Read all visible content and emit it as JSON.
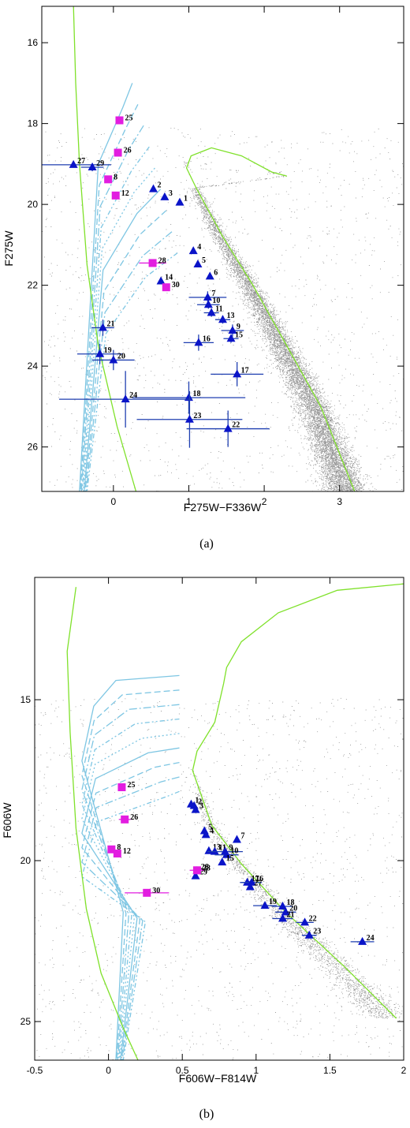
{
  "figure": {
    "captions": [
      "(a)",
      "(b)"
    ]
  },
  "colors": {
    "green": "#7fe12a",
    "cyan": "#7ec6e3",
    "gray": "#7a7a7a",
    "blue": "#0a14c8",
    "errbar_blue": "#1f3fb0",
    "magenta": "#e21de0"
  },
  "chart_data": [
    {
      "type": "scatter",
      "panel": "a",
      "caption": "(a)",
      "xlabel": "F275W−F336W",
      "ylabel": "F275W",
      "xlim": [
        -0.95,
        3.85
      ],
      "ylim": [
        27.1,
        15.1
      ],
      "xticks": [
        0,
        1,
        2,
        3
      ],
      "yticks": [
        16,
        18,
        20,
        22,
        24,
        26
      ],
      "background_cloud": "field stars (gray dots)",
      "isochrone_green": [
        [
          0.3,
          27.1
        ],
        [
          0.05,
          25.5
        ],
        [
          -0.2,
          23.5
        ],
        [
          -0.35,
          21.5
        ],
        [
          -0.45,
          19
        ],
        [
          -0.5,
          17
        ],
        [
          -0.53,
          15.1
        ]
      ],
      "isochrone_green_rgb": [
        [
          3.2,
          27.1
        ],
        [
          2.75,
          25
        ],
        [
          2.3,
          23.5
        ],
        [
          1.85,
          22
        ],
        [
          1.45,
          20.8
        ],
        [
          1.1,
          19.6
        ],
        [
          0.97,
          19.1
        ],
        [
          1.03,
          18.8
        ],
        [
          1.3,
          18.6
        ],
        [
          1.7,
          18.8
        ],
        [
          2.1,
          19.2
        ],
        [
          2.3,
          19.3
        ]
      ],
      "blue_stars": [
        {
          "label": "1",
          "x": 0.88,
          "y": 19.95,
          "xerr": 0.0,
          "yerr": 0.0
        },
        {
          "label": "2",
          "x": 0.53,
          "y": 19.62,
          "xerr": 0.0,
          "yerr": 0.0
        },
        {
          "label": "3",
          "x": 0.68,
          "y": 19.82,
          "xerr": 0.0,
          "yerr": 0.0
        },
        {
          "label": "4",
          "x": 1.06,
          "y": 21.15,
          "xerr": 0.0,
          "yerr": 0.0
        },
        {
          "label": "5",
          "x": 1.12,
          "y": 21.48,
          "xerr": 0.0,
          "yerr": 0.0
        },
        {
          "label": "6",
          "x": 1.28,
          "y": 21.78,
          "xerr": 0.0,
          "yerr": 0.0
        },
        {
          "label": "7",
          "x": 1.25,
          "y": 22.3,
          "xerr": 0.25,
          "yerr": 0.15
        },
        {
          "label": "10",
          "x": 1.26,
          "y": 22.48,
          "xerr": 0.15,
          "yerr": 0.1
        },
        {
          "label": "11",
          "x": 1.3,
          "y": 22.68,
          "xerr": 0.1,
          "yerr": 0.1
        },
        {
          "label": "13",
          "x": 1.45,
          "y": 22.85,
          "xerr": 0.1,
          "yerr": 0.1
        },
        {
          "label": "9",
          "x": 1.58,
          "y": 23.12,
          "xerr": 0.15,
          "yerr": 0.15
        },
        {
          "label": "15",
          "x": 1.56,
          "y": 23.32,
          "xerr": 0.1,
          "yerr": 0.1
        },
        {
          "label": "14",
          "x": 0.63,
          "y": 21.9,
          "xerr": 0.0,
          "yerr": 0.0
        },
        {
          "label": "16",
          "x": 1.13,
          "y": 23.42,
          "xerr": 0.2,
          "yerr": 0.2
        },
        {
          "label": "17",
          "x": 1.64,
          "y": 24.2,
          "xerr": 0.35,
          "yerr": 0.3
        },
        {
          "label": "18",
          "x": 1.0,
          "y": 24.78,
          "xerr": 0.75,
          "yerr": 0.4
        },
        {
          "label": "19",
          "x": -0.18,
          "y": 23.7,
          "xerr": 0.3,
          "yerr": 0.25
        },
        {
          "label": "20",
          "x": 0.0,
          "y": 23.85,
          "xerr": 0.28,
          "yerr": 0.25
        },
        {
          "label": "21",
          "x": -0.14,
          "y": 23.05,
          "xerr": 0.15,
          "yerr": 0.2
        },
        {
          "label": "22",
          "x": 1.52,
          "y": 25.55,
          "xerr": 0.55,
          "yerr": 0.45
        },
        {
          "label": "23",
          "x": 1.01,
          "y": 25.32,
          "xerr": 0.7,
          "yerr": 0.7
        },
        {
          "label": "24",
          "x": 0.16,
          "y": 24.82,
          "xerr": 0.88,
          "yerr": 0.7
        },
        {
          "label": "27",
          "x": -0.53,
          "y": 19.02,
          "xerr": 0.5,
          "yerr": 0.0
        },
        {
          "label": "29",
          "x": -0.28,
          "y": 19.08,
          "xerr": 0.15,
          "yerr": 0.1
        }
      ],
      "magenta_stars": [
        {
          "label": "25",
          "x": 0.08,
          "y": 17.92,
          "xerr": 0.0
        },
        {
          "label": "26",
          "x": 0.06,
          "y": 18.72,
          "xerr": 0.0
        },
        {
          "label": "8",
          "x": -0.07,
          "y": 19.38,
          "xerr": 0.0
        },
        {
          "label": "12",
          "x": 0.03,
          "y": 19.78,
          "xerr": 0.0
        },
        {
          "label": "28",
          "x": 0.52,
          "y": 21.45,
          "xerr": 0.18
        },
        {
          "label": "30",
          "x": 0.7,
          "y": 22.05,
          "xerr": 0.0
        }
      ]
    },
    {
      "type": "scatter",
      "panel": "b",
      "caption": "(b)",
      "xlabel": "F606W−F814W",
      "ylabel": "F606W",
      "xlim": [
        -0.5,
        2.0
      ],
      "ylim": [
        26.2,
        11.2
      ],
      "xticks": [
        -0.5,
        0,
        0.5,
        1,
        1.5,
        2
      ],
      "xtick_labels": [
        "-0.5",
        "0",
        "0.5",
        "1",
        "1.5",
        "2"
      ],
      "yticks": [
        15,
        20,
        25
      ],
      "background_cloud": "field stars (gray dots)",
      "isochrone_green": [
        [
          0.2,
          26.2
        ],
        [
          0.1,
          25.2
        ],
        [
          -0.05,
          23.5
        ],
        [
          -0.15,
          21.5
        ],
        [
          -0.22,
          19
        ],
        [
          -0.26,
          16
        ],
        [
          -0.28,
          13.5
        ],
        [
          -0.22,
          11.5
        ]
      ],
      "isochrone_green_rgb": [
        [
          1.95,
          24.9
        ],
        [
          1.6,
          23.3
        ],
        [
          1.2,
          21.6
        ],
        [
          0.9,
          20.1
        ],
        [
          0.7,
          18.9
        ],
        [
          0.57,
          17.2
        ],
        [
          0.6,
          16.6
        ],
        [
          0.72,
          15.7
        ],
        [
          0.78,
          14.5
        ],
        [
          0.8,
          14.0
        ],
        [
          0.9,
          13.2
        ],
        [
          1.15,
          12.3
        ],
        [
          1.55,
          11.6
        ],
        [
          2.0,
          11.4
        ]
      ],
      "blue_stars": [
        {
          "label": "1",
          "x": 0.56,
          "y": 18.25,
          "xerr": 0.0
        },
        {
          "label": "2",
          "x": 0.58,
          "y": 18.3,
          "xerr": 0.0
        },
        {
          "label": "3",
          "x": 0.59,
          "y": 18.42,
          "xerr": 0.0
        },
        {
          "label": "5",
          "x": 0.65,
          "y": 19.08,
          "xerr": 0.0
        },
        {
          "label": "4",
          "x": 0.66,
          "y": 19.2,
          "xerr": 0.0
        },
        {
          "label": "7",
          "x": 0.87,
          "y": 19.35,
          "xerr": 0.0
        },
        {
          "label": "13",
          "x": 0.68,
          "y": 19.7,
          "xerr": 0.0
        },
        {
          "label": "11",
          "x": 0.72,
          "y": 19.72,
          "xerr": 0.0
        },
        {
          "label": "9",
          "x": 0.79,
          "y": 19.72,
          "xerr": 0.12
        },
        {
          "label": "10",
          "x": 0.8,
          "y": 19.82,
          "xerr": 0.08
        },
        {
          "label": "15",
          "x": 0.77,
          "y": 20.05,
          "xerr": 0.0
        },
        {
          "label": "28",
          "x": 0.6,
          "y": 20.32,
          "xerr": 0.0
        },
        {
          "label": "29",
          "x": 0.59,
          "y": 20.48,
          "xerr": 0.0
        },
        {
          "label": "17",
          "x": 0.94,
          "y": 20.68,
          "xerr": 0.05
        },
        {
          "label": "16",
          "x": 0.97,
          "y": 20.68,
          "xerr": 0.07
        },
        {
          "label": "27",
          "x": 0.96,
          "y": 20.82,
          "xerr": 0.0
        },
        {
          "label": "19",
          "x": 1.06,
          "y": 21.4,
          "xerr": 0.08
        },
        {
          "label": "18",
          "x": 1.18,
          "y": 21.42,
          "xerr": 0.07
        },
        {
          "label": "20",
          "x": 1.2,
          "y": 21.6,
          "xerr": 0.07
        },
        {
          "label": "21",
          "x": 1.18,
          "y": 21.8,
          "xerr": 0.07
        },
        {
          "label": "22",
          "x": 1.33,
          "y": 21.92,
          "xerr": 0.06
        },
        {
          "label": "23",
          "x": 1.36,
          "y": 22.32,
          "xerr": 0.05
        },
        {
          "label": "24",
          "x": 1.72,
          "y": 22.52,
          "xerr": 0.08
        }
      ],
      "magenta_stars": [
        {
          "label": "25",
          "x": 0.09,
          "y": 17.72,
          "xerr": 0.0
        },
        {
          "label": "26",
          "x": 0.11,
          "y": 18.72,
          "xerr": 0.04
        },
        {
          "label": "8",
          "x": 0.02,
          "y": 19.65,
          "xerr": 0.0
        },
        {
          "label": "12",
          "x": 0.06,
          "y": 19.78,
          "xerr": 0.0
        },
        {
          "label": "28",
          "x": 0.6,
          "y": 20.3,
          "xerr": 0.05
        },
        {
          "label": "30",
          "x": 0.26,
          "y": 21.0,
          "xerr": 0.15
        }
      ]
    }
  ]
}
